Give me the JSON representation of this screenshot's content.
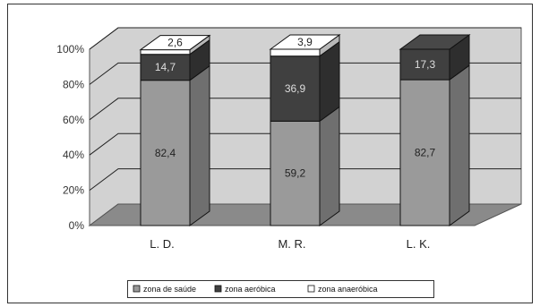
{
  "chart_data": {
    "type": "bar",
    "stacked": "percent",
    "three_d": true,
    "categories": [
      "L. D.",
      "M. R.",
      "L. K."
    ],
    "series": [
      {
        "name": "zona de saúde",
        "values": [
          82.4,
          59.2,
          82.7
        ],
        "labels": [
          "82,4",
          "59,2",
          "82,7"
        ],
        "color": "#9a9a9a"
      },
      {
        "name": "zona aeróbica",
        "values": [
          14.7,
          36.9,
          17.3
        ],
        "labels": [
          "14,7",
          "36,9",
          "17,3"
        ],
        "color": "#404040"
      },
      {
        "name": "zona anaeróbica",
        "values": [
          2.6,
          3.9,
          0
        ],
        "labels": [
          "2,6",
          "3,9",
          ""
        ],
        "color": "#ffffff"
      }
    ],
    "ylim": [
      0,
      100
    ],
    "yticks": [
      "0%",
      "20%",
      "40%",
      "60%",
      "80%",
      "100%"
    ],
    "grid": true,
    "legend_position": "bottom",
    "title": "",
    "xlabel": "",
    "ylabel": "",
    "colors": {
      "wall": "#d2d2d2",
      "floor": "#8a8a8a",
      "grid": "#222222"
    }
  }
}
